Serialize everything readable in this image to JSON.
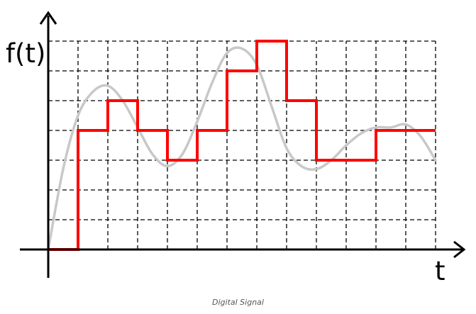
{
  "chart_data": {
    "type": "line",
    "title": "",
    "xlabel": "t",
    "ylabel": "f(t)",
    "xlim": [
      0,
      13
    ],
    "ylim": [
      0,
      7
    ],
    "grid": true,
    "series": [
      {
        "color": "#c8c8c8",
        "style": "smooth",
        "x": [
          0,
          0.5,
          1,
          1.5,
          2,
          2.5,
          3,
          3.5,
          4,
          4.5,
          5,
          5.5,
          6,
          6.5,
          7,
          7.5,
          8,
          8.5,
          9,
          9.5,
          10,
          10.5,
          11,
          11.5,
          12,
          12.5,
          13
        ],
        "y": [
          0,
          2.7,
          4.5,
          5.3,
          5.5,
          5.0,
          4.1,
          3.2,
          2.8,
          3.2,
          4.3,
          5.6,
          6.6,
          6.75,
          6.2,
          4.8,
          3.4,
          2.8,
          2.7,
          3.0,
          3.5,
          3.9,
          4.1,
          4.1,
          4.2,
          3.8,
          3.0
        ]
      },
      {
        "color": "#ff0000",
        "style": "step",
        "x": [
          0,
          1,
          2,
          3,
          4,
          5,
          6,
          7,
          8,
          9,
          10,
          11,
          12,
          13
        ],
        "y": [
          0,
          4,
          5,
          4,
          3,
          4,
          6,
          7,
          5,
          3,
          3,
          4,
          4,
          4
        ]
      }
    ]
  },
  "caption": "Digital Signal"
}
